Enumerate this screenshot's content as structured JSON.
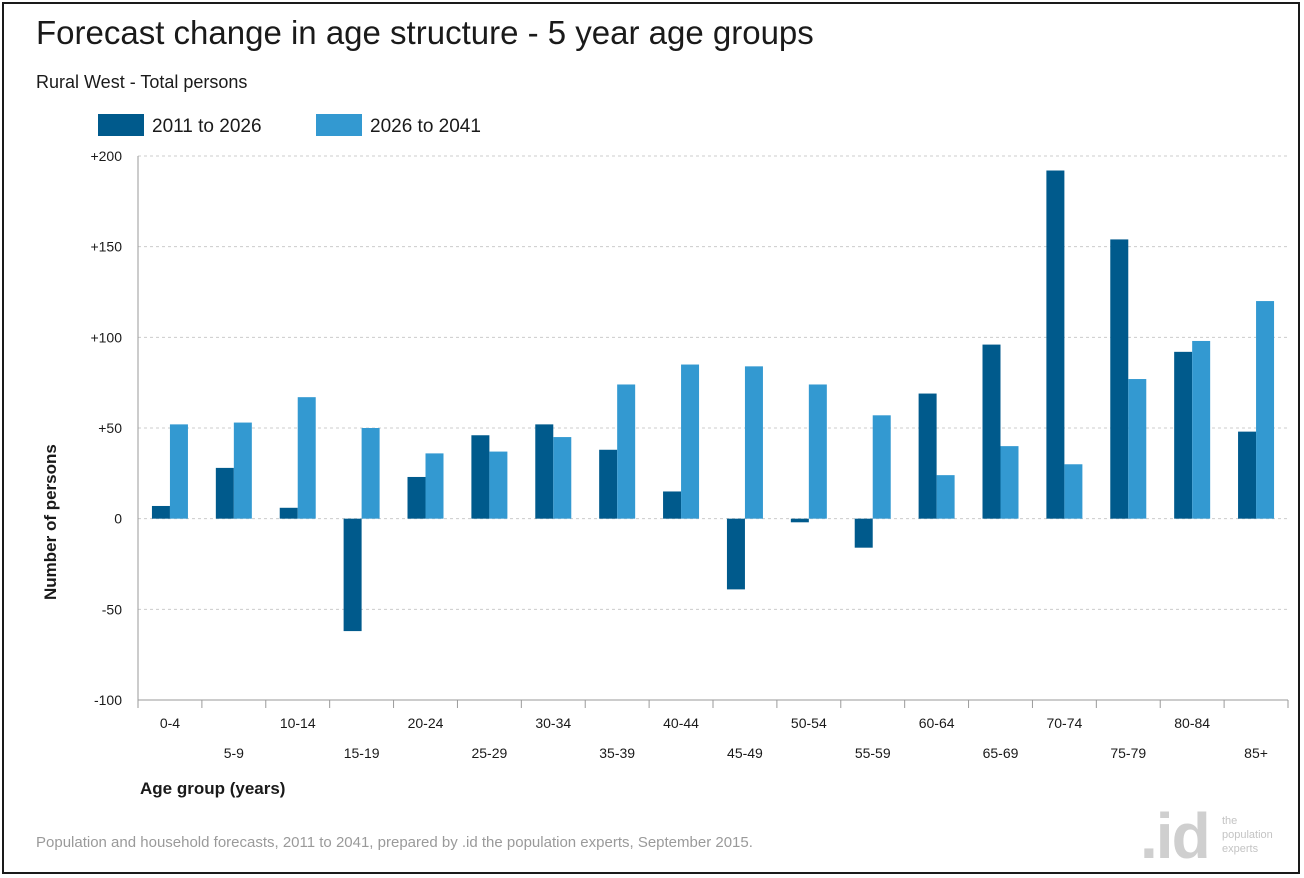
{
  "title": "Forecast change in age structure - 5 year age groups",
  "subtitle": "Rural West - Total persons",
  "footer": "Population and household forecasts, 2011 to 2041, prepared by .id the population experts, September 2015.",
  "logo": {
    "mark": ".id",
    "line1": "the",
    "line2": "population",
    "line3": "experts"
  },
  "colors": {
    "series1": "#005a8c",
    "series2": "#3399d1",
    "grid": "#cccccc",
    "text": "#1a1a1a"
  },
  "chart_data": {
    "type": "bar",
    "xlabel": "Age group (years)",
    "ylabel": "Number of persons",
    "ylim": [
      -100,
      200
    ],
    "yticks": [
      200,
      150,
      100,
      50,
      0,
      -50,
      -100
    ],
    "ytick_labels": [
      "+200",
      "+150",
      "+100",
      "+50",
      "0",
      "-50",
      "-100"
    ],
    "grid": true,
    "legend_position": "top-left",
    "categories": [
      "0-4",
      "5-9",
      "10-14",
      "15-19",
      "20-24",
      "25-29",
      "30-34",
      "35-39",
      "40-44",
      "45-49",
      "50-54",
      "55-59",
      "60-64",
      "65-69",
      "70-74",
      "75-79",
      "80-84",
      "85+"
    ],
    "series": [
      {
        "name": "2011 to 2026",
        "values": [
          7,
          28,
          6,
          -62,
          23,
          46,
          52,
          38,
          15,
          -39,
          -2,
          -16,
          69,
          96,
          192,
          154,
          92,
          48
        ]
      },
      {
        "name": "2026 to 2041",
        "values": [
          52,
          53,
          67,
          50,
          36,
          37,
          45,
          74,
          85,
          84,
          74,
          57,
          24,
          40,
          30,
          77,
          98,
          120
        ]
      }
    ]
  }
}
